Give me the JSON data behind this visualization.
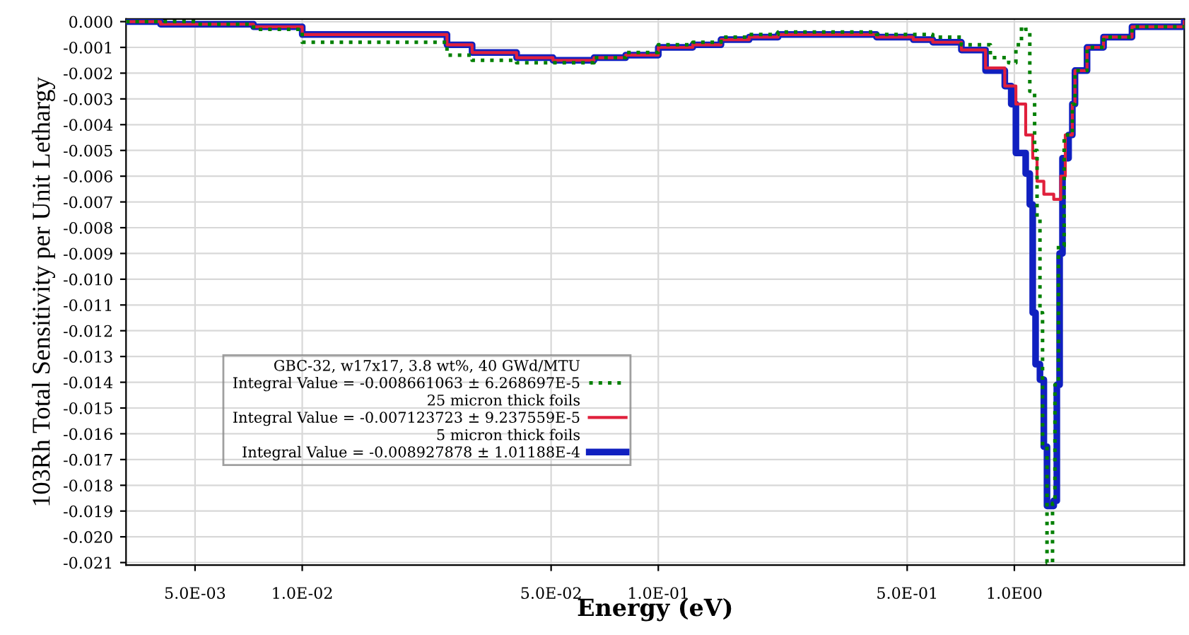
{
  "chart_data": {
    "type": "step",
    "xlabel": "Energy (eV)",
    "ylabel": "103Rh Total Sensitivity per Unit Lethargy",
    "log": "x",
    "grid": true,
    "legend": "lower left",
    "annotations": [
      "GBC-32, w17x17, 3.8 wt%, 40 GWd/MTU",
      "25 micron thick foils",
      "5 micron thick foils"
    ],
    "xlim": [
      0.0032,
      3.0
    ],
    "ylim": [
      -0.0211,
      0.0001
    ],
    "xticks": [
      {
        "value": 0.005,
        "label": "5.0E-03"
      },
      {
        "value": 0.01,
        "label": "1.0E-02"
      },
      {
        "value": 0.05,
        "label": "5.0E-02"
      },
      {
        "value": 0.1,
        "label": "1.0E-01"
      },
      {
        "value": 0.5,
        "label": "5.0E-01"
      },
      {
        "value": 1.0,
        "label": "1.0E00"
      }
    ],
    "yticks": [
      {
        "value": 0,
        "label": "0.000"
      },
      {
        "value": -0.001,
        "label": "-0.001"
      },
      {
        "value": -0.002,
        "label": "-0.002"
      },
      {
        "value": -0.003,
        "label": "-0.003"
      },
      {
        "value": -0.004,
        "label": "-0.004"
      },
      {
        "value": -0.005,
        "label": "-0.005"
      },
      {
        "value": -0.006,
        "label": "-0.006"
      },
      {
        "value": -0.007,
        "label": "-0.007"
      },
      {
        "value": -0.008,
        "label": "-0.008"
      },
      {
        "value": -0.009,
        "label": "-0.009"
      },
      {
        "value": -0.01,
        "label": "-0.010"
      },
      {
        "value": -0.011,
        "label": "-0.011"
      },
      {
        "value": -0.012,
        "label": "-0.012"
      },
      {
        "value": -0.013,
        "label": "-0.013"
      },
      {
        "value": -0.014,
        "label": "-0.014"
      },
      {
        "value": -0.015,
        "label": "-0.015"
      },
      {
        "value": -0.016,
        "label": "-0.016"
      },
      {
        "value": -0.017,
        "label": "-0.017"
      },
      {
        "value": -0.018,
        "label": "-0.018"
      },
      {
        "value": -0.019,
        "label": "-0.019"
      },
      {
        "value": -0.02,
        "label": "-0.020"
      },
      {
        "value": -0.021,
        "label": "-0.021"
      }
    ],
    "series": [
      {
        "name": "Integral Value = -0.008661063 ± 6.268697E-5",
        "color": "#008000",
        "line_style": "dotted",
        "x": [
          0.0032,
          0.0051,
          0.0073,
          0.01,
          0.0255,
          0.03,
          0.04,
          0.066,
          0.081,
          0.1,
          0.125,
          0.15,
          0.18,
          0.217,
          0.31,
          0.41,
          0.52,
          0.59,
          0.71,
          0.856,
          0.964,
          1.01,
          1.047,
          1.076,
          1.105,
          1.14,
          1.158,
          1.18,
          1.2,
          1.235,
          1.28,
          1.3,
          1.33,
          1.38,
          1.455,
          1.48,
          1.6,
          1.78,
          2.14,
          3.0
        ],
        "values": [
          0,
          -0.0001,
          -0.0003,
          -0.0008,
          -0.0013,
          -0.0015,
          -0.0016,
          -0.0014,
          -0.0012,
          -0.0009,
          -0.0008,
          -0.0006,
          -0.0005,
          -0.0004,
          -0.0004,
          -0.0005,
          -0.0005,
          -0.0006,
          -0.0009,
          -0.0014,
          -0.0016,
          -0.0009,
          -0.0002,
          -0.0003,
          -0.0027,
          -0.005,
          -0.0076,
          -0.0113,
          -0.0165,
          -0.021,
          -0.0187,
          -0.0141,
          -0.0087,
          -0.0044,
          -0.0032,
          -0.0019,
          -0.001,
          -0.0006,
          -0.0002,
          0
        ]
      },
      {
        "name": "Integral Value = -0.007123723 ± 9.237559E-5",
        "color": "#e0203c",
        "line_style": "solid",
        "x": [
          0.0032,
          0.004,
          0.0073,
          0.01,
          0.0255,
          0.03,
          0.04,
          0.0506,
          0.066,
          0.081,
          0.1,
          0.125,
          0.15,
          0.18,
          0.217,
          0.31,
          0.41,
          0.52,
          0.59,
          0.71,
          0.83,
          0.94,
          1.01,
          1.076,
          1.126,
          1.158,
          1.21,
          1.29,
          1.34,
          1.35,
          1.39,
          1.455,
          1.48,
          1.6,
          1.78,
          2.14,
          3.0
        ],
        "values": [
          0,
          -0.0001,
          -0.0002,
          -0.0005,
          -0.0009,
          -0.0012,
          -0.0014,
          -0.0015,
          -0.0014,
          -0.0013,
          -0.001,
          -0.0009,
          -0.0007,
          -0.0006,
          -0.0005,
          -0.0005,
          -0.0006,
          -0.0007,
          -0.0008,
          -0.0011,
          -0.0018,
          -0.0025,
          -0.0032,
          -0.0044,
          -0.0053,
          -0.0062,
          -0.0067,
          -0.0069,
          -0.0069,
          -0.006,
          -0.0044,
          -0.0032,
          -0.0019,
          -0.001,
          -0.0006,
          -0.0002,
          0
        ]
      },
      {
        "name": "Integral Value = -0.008927878 ± 1.01188E-4",
        "color": "#1020c0",
        "line_style": "solid",
        "x": [
          0.0032,
          0.004,
          0.0073,
          0.01,
          0.0255,
          0.03,
          0.04,
          0.0506,
          0.066,
          0.081,
          0.1,
          0.125,
          0.15,
          0.18,
          0.217,
          0.31,
          0.41,
          0.52,
          0.59,
          0.71,
          0.83,
          0.94,
          0.98,
          1.01,
          1.076,
          1.105,
          1.126,
          1.147,
          1.18,
          1.21,
          1.235,
          1.29,
          1.316,
          1.34,
          1.365,
          1.42,
          1.455,
          1.48,
          1.6,
          1.78,
          2.14,
          3.0
        ],
        "values": [
          0,
          -0.0001,
          -0.0002,
          -0.0005,
          -0.0009,
          -0.0012,
          -0.0014,
          -0.0015,
          -0.0014,
          -0.0013,
          -0.001,
          -0.0009,
          -0.0007,
          -0.0006,
          -0.0005,
          -0.0005,
          -0.0006,
          -0.0007,
          -0.0008,
          -0.0011,
          -0.0019,
          -0.0025,
          -0.0032,
          -0.0051,
          -0.0059,
          -0.0071,
          -0.0113,
          -0.0133,
          -0.0139,
          -0.0165,
          -0.0188,
          -0.0186,
          -0.0141,
          -0.009,
          -0.0053,
          -0.0044,
          -0.0032,
          -0.0019,
          -0.001,
          -0.0006,
          -0.0002,
          0
        ]
      }
    ]
  }
}
